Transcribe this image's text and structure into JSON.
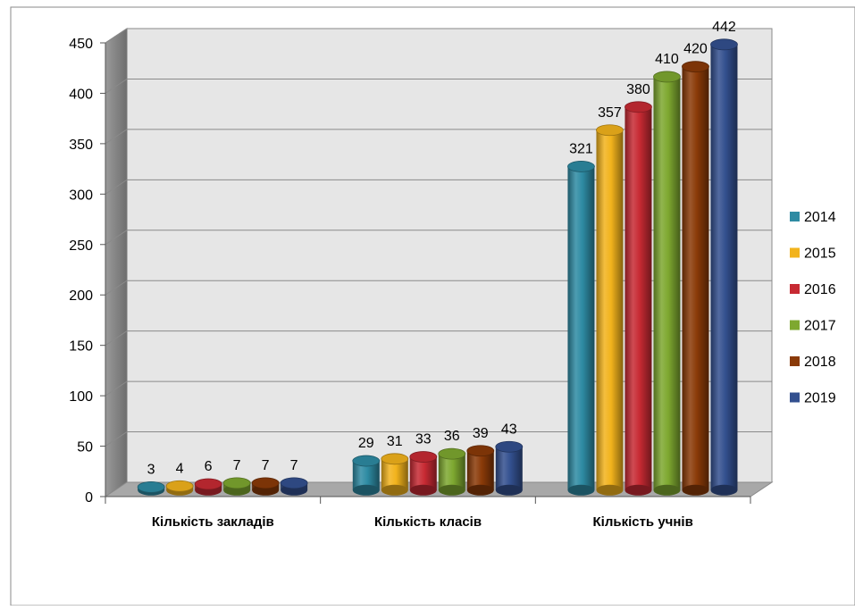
{
  "chart_data": {
    "type": "bar",
    "title": "",
    "xlabel": "",
    "ylabel": "",
    "ylim": [
      0,
      450
    ],
    "yticks": [
      0,
      50,
      100,
      150,
      200,
      250,
      300,
      350,
      400,
      450
    ],
    "grid": true,
    "legend": "right",
    "categories": [
      "Кількість закладів",
      "Кількість класів",
      "Кількість учнів"
    ],
    "series": [
      {
        "name": "2014",
        "color": "#2E8BA3",
        "values": [
          3,
          29,
          321
        ]
      },
      {
        "name": "2015",
        "color": "#F2B31C",
        "values": [
          4,
          31,
          357
        ]
      },
      {
        "name": "2016",
        "color": "#C72A33",
        "values": [
          6,
          33,
          380
        ]
      },
      {
        "name": "2017",
        "color": "#7EA830",
        "values": [
          7,
          36,
          410
        ]
      },
      {
        "name": "2018",
        "color": "#8A3A08",
        "values": [
          7,
          39,
          420
        ]
      },
      {
        "name": "2019",
        "color": "#33508F",
        "values": [
          7,
          43,
          442
        ]
      }
    ]
  }
}
